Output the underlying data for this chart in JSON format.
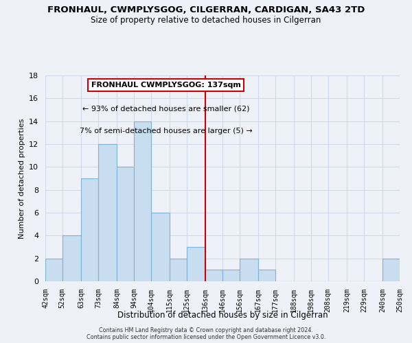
{
  "title": "FRONHAUL, CWMPLYSGOG, CILGERRAN, CARDIGAN, SA43 2TD",
  "subtitle": "Size of property relative to detached houses in Cilgerran",
  "xlabel": "Distribution of detached houses by size in Cilgerran",
  "ylabel": "Number of detached properties",
  "bar_color": "#c8ddf0",
  "bar_edge_color": "#7ab5d8",
  "grid_color": "#d0d8e8",
  "background_color": "#eef2f8",
  "vline_x": 136,
  "vline_color": "#cc0000",
  "annotation_title": "FRONHAUL CWMPLYSGOG: 137sqm",
  "annotation_line1": "← 93% of detached houses are smaller (62)",
  "annotation_line2": "7% of semi-detached houses are larger (5) →",
  "annotation_box_color": "white",
  "annotation_border_color": "#cc0000",
  "bin_edges": [
    42,
    52,
    63,
    73,
    84,
    94,
    104,
    115,
    125,
    136,
    146,
    156,
    167,
    177,
    188,
    198,
    208,
    219,
    229,
    240,
    250
  ],
  "bin_labels": [
    "42sqm",
    "52sqm",
    "63sqm",
    "73sqm",
    "84sqm",
    "94sqm",
    "104sqm",
    "115sqm",
    "125sqm",
    "136sqm",
    "146sqm",
    "156sqm",
    "167sqm",
    "177sqm",
    "188sqm",
    "198sqm",
    "208sqm",
    "219sqm",
    "229sqm",
    "240sqm",
    "250sqm"
  ],
  "counts": [
    2,
    4,
    9,
    12,
    10,
    14,
    6,
    2,
    3,
    1,
    1,
    2,
    1,
    0,
    0,
    0,
    0,
    0,
    0,
    2
  ],
  "ylim": [
    0,
    18
  ],
  "yticks": [
    0,
    2,
    4,
    6,
    8,
    10,
    12,
    14,
    16,
    18
  ],
  "footer_line1": "Contains HM Land Registry data © Crown copyright and database right 2024.",
  "footer_line2": "Contains public sector information licensed under the Open Government Licence v3.0."
}
